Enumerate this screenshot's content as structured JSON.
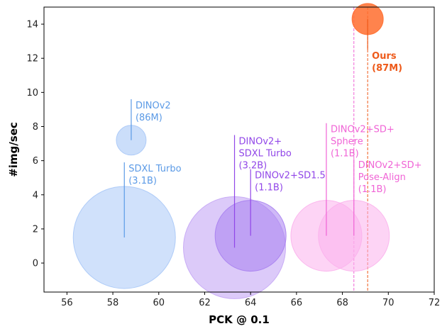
{
  "chart_data": {
    "type": "scatter",
    "title": "",
    "xlabel": "PCK @ 0.1",
    "ylabel": "#img/sec",
    "xlim": [
      55,
      72
    ],
    "ylim": [
      -1.7,
      15
    ],
    "xticks": [
      "56",
      "58",
      "60",
      "62",
      "64",
      "66",
      "68",
      "70",
      "72"
    ],
    "yticks": [
      "0",
      "2",
      "4",
      "6",
      "8",
      "10",
      "12",
      "14"
    ],
    "grid": false,
    "legend": "none",
    "points": [
      {
        "id": "sdxl-turbo",
        "x": 58.5,
        "y": 1.5,
        "size_label": "3.1B",
        "annotation": [
          "SDXL Turbo",
          "(3.1B)"
        ],
        "color": "#a9c8f7",
        "text_color": "#5b9ae6",
        "label_y": 5.9
      },
      {
        "id": "dinov2",
        "x": 58.8,
        "y": 7.2,
        "size_label": "86M",
        "annotation": [
          "DINOv2",
          "(86M)"
        ],
        "color": "#a9c8f7",
        "text_color": "#5b9ae6",
        "label_y": 9.6
      },
      {
        "id": "dinov2-sdxl-turbo",
        "x": 63.3,
        "y": 0.9,
        "size_label": "3.2B",
        "annotation": [
          "DINOv2+",
          "SDXL Turbo",
          "(3.2B)"
        ],
        "color": "#c4a6f5",
        "text_color": "#9146e8",
        "label_y": 7.5
      },
      {
        "id": "dinov2-sd15",
        "x": 64.0,
        "y": 1.6,
        "size_label": "1.1B",
        "annotation": [
          "DINOv2+SD1.5",
          "(1.1B)"
        ],
        "color": "#a77ff0",
        "text_color": "#9146e8",
        "label_y": 5.5
      },
      {
        "id": "dinov2-sd-sphere",
        "x": 67.3,
        "y": 1.6,
        "size_label": "1.1B",
        "annotation": [
          "DINOv2+SD+",
          "Sphere",
          "(1.1B)"
        ],
        "color": "#fbb1ec",
        "text_color": "#f064d6",
        "label_y": 8.2
      },
      {
        "id": "dinov2-sd-pose-align",
        "x": 68.5,
        "y": 1.6,
        "size_label": "1.1B",
        "annotation": [
          "DINOv2+SD+",
          "Pose-Align",
          "(1.1B)"
        ],
        "color": "#fbb1ec",
        "text_color": "#f064d6",
        "label_y": 6.1
      },
      {
        "id": "ours",
        "x": 69.1,
        "y": 14.3,
        "size_label": "87M",
        "annotation": [
          "Ours",
          "(87M)"
        ],
        "color": "#ff6d2e",
        "text_color": "#ee5a1a",
        "label_y": 12.5,
        "bold": true
      }
    ]
  }
}
